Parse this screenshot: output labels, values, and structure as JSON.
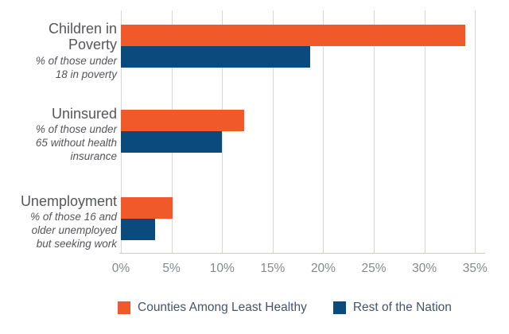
{
  "chart_data": {
    "type": "bar",
    "orientation": "horizontal",
    "categories": [
      {
        "label": "Children in Poverty",
        "label_lines": [
          "Children in",
          "Poverty"
        ],
        "sublabel": "% of those under 18 in poverty",
        "sublabel_lines": [
          "% of those under",
          "18 in poverty"
        ]
      },
      {
        "label": "Uninsured",
        "label_lines": [
          "Uninsured"
        ],
        "sublabel": "% of those under 65 without health insurance",
        "sublabel_lines": [
          "% of those under",
          "65 without health",
          "insurance"
        ]
      },
      {
        "label": "Unemployment",
        "label_lines": [
          "Unemployment"
        ],
        "sublabel": "% of those 16 and older unemployed but seeking work",
        "sublabel_lines": [
          "% of those 16 and",
          "older unemployed",
          "but seeking work"
        ]
      }
    ],
    "series": [
      {
        "name": "Counties Among Least Healthy",
        "color": "#F0592A",
        "values": [
          34.0,
          12.2,
          5.1
        ]
      },
      {
        "name": "Rest of the Nation",
        "color": "#0B4A7D",
        "values": [
          18.7,
          10.0,
          3.4
        ]
      }
    ],
    "x_axis": {
      "min": 0,
      "max": 35,
      "tick_step": 5,
      "unit": "%",
      "tick_labels": [
        "0%",
        "5%",
        "10%",
        "15%",
        "20%",
        "25%",
        "30%",
        "35%"
      ]
    },
    "grid": true,
    "legend_position": "bottom"
  },
  "colors": {
    "background": "#FFFFFF",
    "gridline": "#D8D8D3",
    "axis_line": "#CCCCC6",
    "tick_label": "#85888F",
    "category_label": "#55565B",
    "legend_label": "#44546A",
    "bar_orange": "#F0592A",
    "bar_blue": "#0B4A7D"
  }
}
